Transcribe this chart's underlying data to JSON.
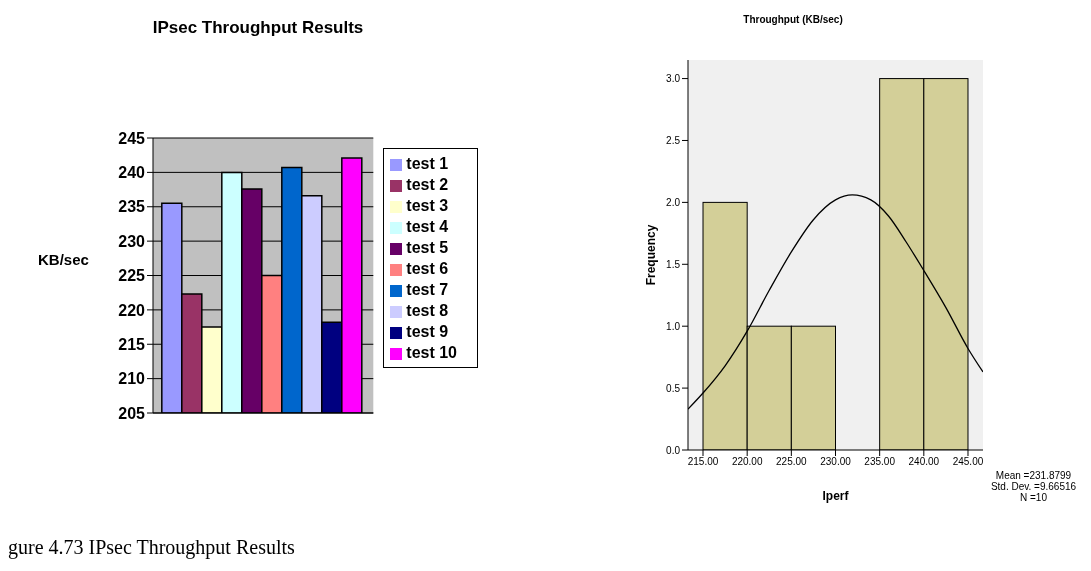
{
  "chart_data": [
    {
      "type": "bar",
      "title": "IPsec Throughput Results",
      "ylabel": "KB/sec",
      "categories": [
        null
      ],
      "series": [
        {
          "name": "test 1",
          "color": "#9999ff",
          "values": [
            235.5
          ]
        },
        {
          "name": "test 2",
          "color": "#993366",
          "values": [
            222.3
          ]
        },
        {
          "name": "test 3",
          "color": "#ffffcc",
          "values": [
            217.5
          ]
        },
        {
          "name": "test 4",
          "color": "#ccffff",
          "values": [
            240
          ]
        },
        {
          "name": "test 5",
          "color": "#660066",
          "values": [
            237.6
          ]
        },
        {
          "name": "test 6",
          "color": "#ff8080",
          "values": [
            225
          ]
        },
        {
          "name": "test 7",
          "color": "#0066cc",
          "values": [
            240.7
          ]
        },
        {
          "name": "test 8",
          "color": "#ccccff",
          "values": [
            236.6
          ]
        },
        {
          "name": "test 9",
          "color": "#000080",
          "values": [
            218.2
          ]
        },
        {
          "name": "test 10",
          "color": "#ff00ff",
          "values": [
            242.1
          ]
        }
      ],
      "ylim": [
        205,
        245
      ],
      "yticks": [
        205,
        210,
        215,
        220,
        225,
        230,
        235,
        240,
        245
      ],
      "grid": "y",
      "legend": "right",
      "annotations": [
        "gure 4.73 IPsec Throughput Results"
      ]
    },
    {
      "type": "histogram",
      "title": "Throughput (KB/sec)",
      "xlabel": "Iperf",
      "ylabel": "Frequency",
      "bins": [
        215,
        220,
        225,
        230,
        235,
        240,
        245
      ],
      "values": [
        2,
        1,
        1,
        0,
        3,
        3
      ],
      "color": "#d3cf98",
      "series": [
        {
          "type": "line",
          "color": "#000000",
          "x": [
            213.3,
            215,
            217.5,
            220,
            222.5,
            225,
            227.5,
            230,
            231.9,
            234,
            236,
            238,
            240,
            242.5,
            245,
            246.7
          ],
          "values": [
            0.33,
            0.46,
            0.68,
            0.96,
            1.29,
            1.6,
            1.86,
            2.02,
            2.06,
            2.02,
            1.89,
            1.68,
            1.45,
            1.15,
            0.82,
            0.63
          ]
        }
      ],
      "xlim": [
        213.3,
        246.7
      ],
      "xticks": [
        {
          "value": 215,
          "label": "215.00"
        },
        {
          "value": 220,
          "label": "220.00"
        },
        {
          "value": 225,
          "label": "225.00"
        },
        {
          "value": 230,
          "label": "230.00"
        },
        {
          "value": 235,
          "label": "235.00"
        },
        {
          "value": 240,
          "label": "240.00"
        },
        {
          "value": 245,
          "label": "245.00"
        }
      ],
      "ylim": [
        0,
        3.15
      ],
      "yticks": [
        {
          "value": 0,
          "label": "0.0"
        },
        {
          "value": 0.5,
          "label": "0.5"
        },
        {
          "value": 1,
          "label": "1.0"
        },
        {
          "value": 1.5,
          "label": "1.5"
        },
        {
          "value": 2,
          "label": "2.0"
        },
        {
          "value": 2.5,
          "label": "2.5"
        },
        {
          "value": 3,
          "label": "3.0"
        }
      ],
      "annotations": [
        "Mean =231.8799",
        "Std. Dev. =9.66516",
        "N =10"
      ]
    }
  ]
}
